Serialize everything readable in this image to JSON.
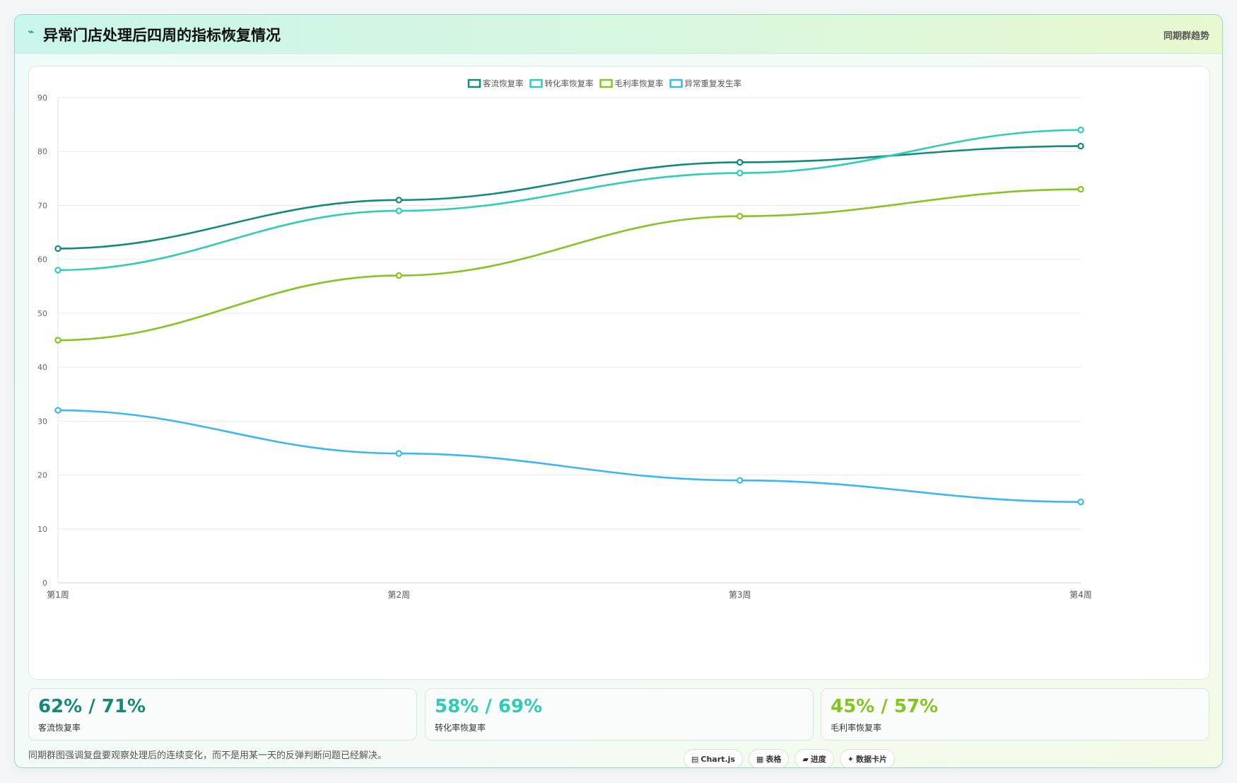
{
  "header": {
    "icon": "chart-line-icon",
    "title": "异常门店处理后四周的指标恢复情况",
    "tag": "同期群趋势"
  },
  "chart_data": {
    "type": "line",
    "categories": [
      "第1周",
      "第2周",
      "第3周",
      "第4周"
    ],
    "ylim": [
      0,
      90
    ],
    "yticks": [
      0,
      10,
      20,
      30,
      40,
      50,
      60,
      70,
      80,
      90
    ],
    "grid": true,
    "legend_position": "top-center",
    "series": [
      {
        "name": "客流恢复率",
        "color": "#138a7b",
        "values": [
          62,
          71,
          78,
          81
        ]
      },
      {
        "name": "转化率恢复率",
        "color": "#2ecdb8",
        "values": [
          58,
          69,
          76,
          84
        ]
      },
      {
        "name": "毛利率恢复率",
        "color": "#84c51f",
        "values": [
          45,
          57,
          68,
          73
        ]
      },
      {
        "name": "异常重复发生率",
        "color": "#3bb8ef",
        "values": [
          32,
          24,
          19,
          15
        ]
      }
    ]
  },
  "stats": [
    {
      "value": "62% / 71%",
      "label": "客流恢复率",
      "color": "#138a7b"
    },
    {
      "value": "58% / 69%",
      "label": "转化率恢复率",
      "color": "#2ecdb8"
    },
    {
      "value": "45% / 57%",
      "label": "毛利率恢复率",
      "color": "#84c51f"
    }
  ],
  "footer": {
    "note": "同期群图强调复盘要观察处理后的连续变化，而不是用某一天的反弹判断问题已经解决。",
    "chips": [
      {
        "icon": "chart-icon",
        "label": "Chart.js"
      },
      {
        "icon": "table-icon",
        "label": "表格"
      },
      {
        "icon": "progress-icon",
        "label": "进度"
      },
      {
        "icon": "sparkle-icon",
        "label": "数据卡片"
      }
    ]
  }
}
